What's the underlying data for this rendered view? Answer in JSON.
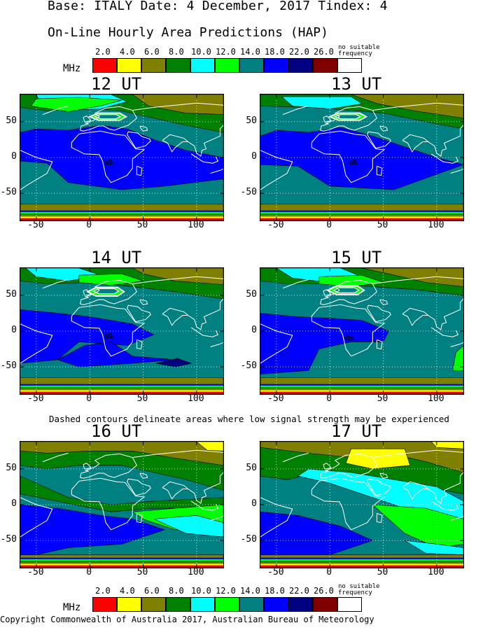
{
  "header": {
    "title": "Base: ITALY Date: 4 December, 2017 Tindex: 4",
    "subtitle": "On-Line Hourly Area Predictions (HAP)"
  },
  "legend": {
    "unit": "MHz",
    "no_suitable_line1": "no suitable",
    "no_suitable_line2": "frequency",
    "items": [
      {
        "label": "2.0",
        "color": "#ff0000"
      },
      {
        "label": "4.0",
        "color": "#ffff00"
      },
      {
        "label": "6.0",
        "color": "#808000"
      },
      {
        "label": "8.0",
        "color": "#008000"
      },
      {
        "label": "10.0",
        "color": "#00ffff"
      },
      {
        "label": "12.0",
        "color": "#00ff00"
      },
      {
        "label": "14.0",
        "color": "#008080"
      },
      {
        "label": "18.0",
        "color": "#0000ff"
      },
      {
        "label": "22.0",
        "color": "#000080"
      },
      {
        "label": "26.0",
        "color": "#800000"
      },
      {
        "label": "",
        "color": "#ffffff"
      }
    ]
  },
  "axes": {
    "y_ticks": [
      "50",
      "0",
      "-50"
    ],
    "x_ticks": [
      "-50",
      "0",
      "50",
      "100"
    ]
  },
  "panels": [
    {
      "title": "12 UT"
    },
    {
      "title": "13 UT"
    },
    {
      "title": "14 UT"
    },
    {
      "title": "15 UT"
    },
    {
      "title": "16 UT"
    },
    {
      "title": "17 UT"
    }
  ],
  "note": "Dashed contours delineate areas where low signal strength may be experienced",
  "copyright": "Copyright Commonwealth of Australia 2017, Australian Bureau of Meteorology"
}
